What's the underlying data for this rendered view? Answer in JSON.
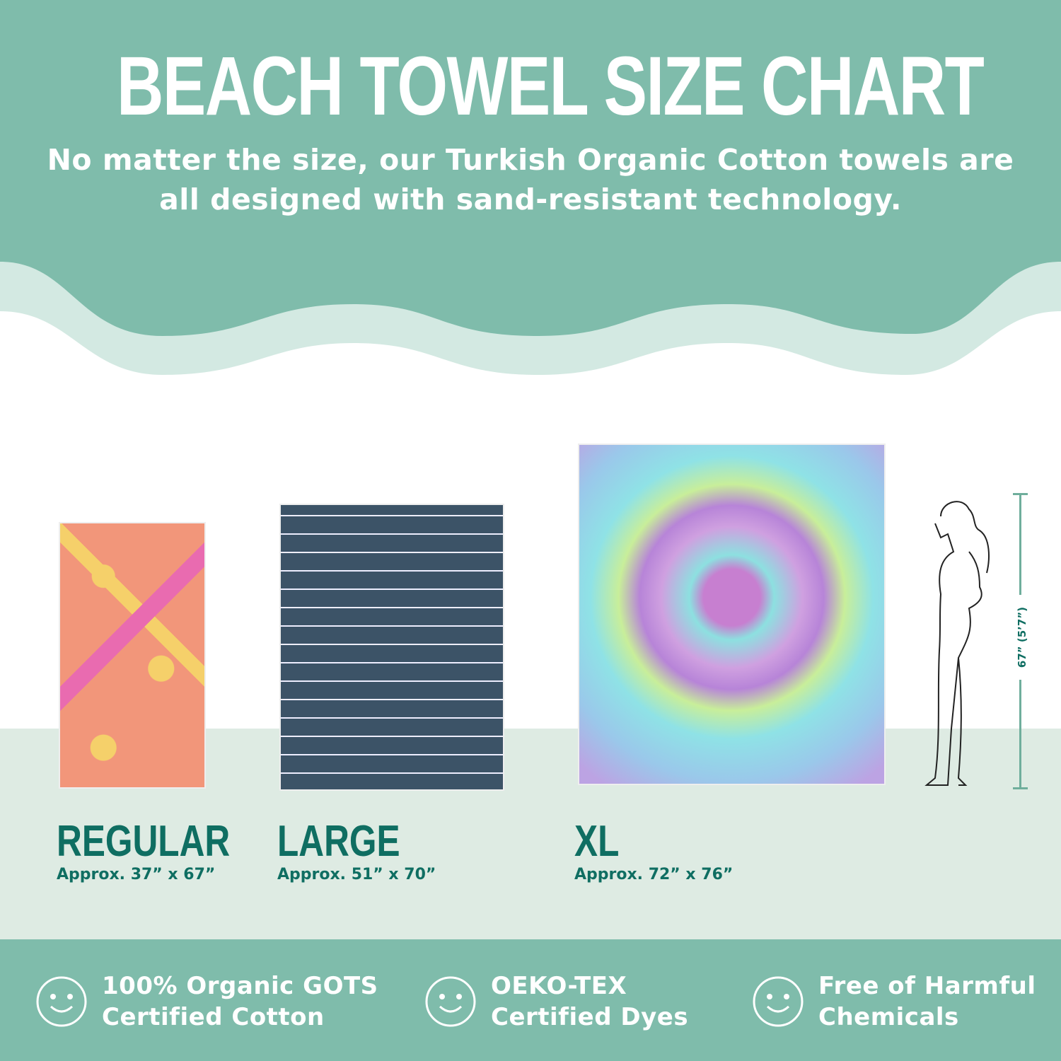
{
  "header": {
    "title": "BEACH TOWEL SIZE CHART",
    "subtitle": "No matter the size, our Turkish Organic Cotton towels are all designed with sand-resistant technology."
  },
  "colors": {
    "teal": "#7fbcab",
    "light_teal": "#d3e9e2",
    "floor": "#deebe3",
    "dark_teal_text": "#0f6e62"
  },
  "sizes": [
    {
      "name": "REGULAR",
      "dimensions": "Approx. 37” x 67”"
    },
    {
      "name": "LARGE",
      "dimensions": "Approx. 51” x 70”"
    },
    {
      "name": "XL",
      "dimensions": "Approx. 72” x 76”"
    }
  ],
  "height_reference": {
    "label": "67” (5’7”)"
  },
  "badges": [
    {
      "icon": "smiley-icon",
      "line1": "100% Organic GOTS",
      "line2": "Certified Cotton"
    },
    {
      "icon": "smiley-icon",
      "line1": "OEKO-TEX",
      "line2": "Certified Dyes"
    },
    {
      "icon": "smiley-icon",
      "line1": "Free of Harmful",
      "line2": "Chemicals"
    }
  ]
}
